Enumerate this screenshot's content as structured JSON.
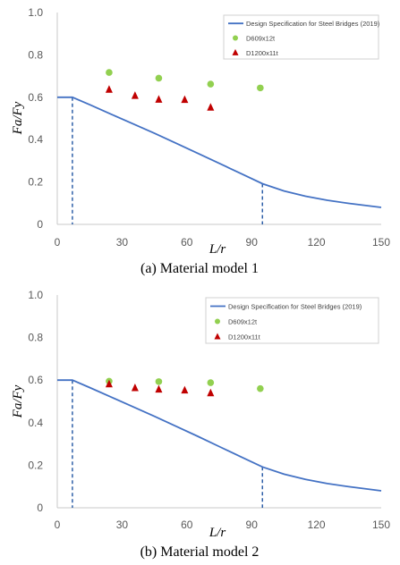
{
  "chart_data": [
    {
      "type": "line",
      "caption": "(a) Material model 1",
      "xlabel": "L/r",
      "ylabel": "Fa/Fy",
      "xlim": [
        0,
        150
      ],
      "ylim": [
        0,
        1.0
      ],
      "xticks": [
        "0",
        "30",
        "60",
        "90",
        "120",
        "150"
      ],
      "yticks": [
        "0",
        "0.2",
        "0.4",
        "0.6",
        "0.8",
        "1.0"
      ],
      "grid": false,
      "legend_position": "top-right",
      "legend": [
        "Design Specification for Steel Bridges (2019)",
        "D609x12t",
        "D1200x11t"
      ],
      "curve": {
        "name": "Design Specification for Steel Bridges (2019)",
        "color": "#4472C4",
        "x": [
          0,
          7,
          15,
          25,
          35,
          45,
          55,
          65,
          75,
          85,
          95,
          105,
          115,
          125,
          135,
          150
        ],
        "y": [
          0.6,
          0.6,
          0.565,
          0.52,
          0.475,
          0.43,
          0.383,
          0.336,
          0.288,
          0.24,
          0.192,
          0.158,
          0.133,
          0.114,
          0.099,
          0.08
        ]
      },
      "series": [
        {
          "name": "D609x12t",
          "marker": "circle",
          "color": "#92D050",
          "x": [
            24,
            47,
            71,
            94
          ],
          "y": [
            0.717,
            0.69,
            0.662,
            0.644
          ]
        },
        {
          "name": "D1200x11t",
          "marker": "triangle",
          "color": "#C00000",
          "x": [
            24,
            36,
            47,
            59,
            71
          ],
          "y": [
            0.637,
            0.608,
            0.59,
            0.589,
            0.553
          ]
        }
      ],
      "dashed_markers": {
        "color": "#2E5FA8",
        "x": [
          7,
          95
        ]
      }
    },
    {
      "type": "line",
      "caption": "(b) Material model 2",
      "xlabel": "L/r",
      "ylabel": "Fa/Fy",
      "xlim": [
        0,
        150
      ],
      "ylim": [
        0,
        1.0
      ],
      "xticks": [
        "0",
        "30",
        "60",
        "90",
        "120",
        "150"
      ],
      "yticks": [
        "0",
        "0.2",
        "0.4",
        "0.6",
        "0.8",
        "1.0"
      ],
      "grid": false,
      "legend_position": "top-right",
      "legend": [
        "Design Specification for Steel Bridges (2019)",
        "D609x12t",
        "D1200x11t"
      ],
      "curve": {
        "name": "Design Specification for Steel Bridges (2019)",
        "color": "#4472C4",
        "x": [
          0,
          7,
          15,
          25,
          35,
          45,
          55,
          65,
          75,
          85,
          95,
          105,
          115,
          125,
          135,
          150
        ],
        "y": [
          0.6,
          0.6,
          0.565,
          0.52,
          0.475,
          0.43,
          0.383,
          0.336,
          0.288,
          0.24,
          0.192,
          0.158,
          0.133,
          0.114,
          0.099,
          0.08
        ]
      },
      "series": [
        {
          "name": "D609x12t",
          "marker": "circle",
          "color": "#92D050",
          "x": [
            24,
            47,
            71,
            94
          ],
          "y": [
            0.595,
            0.593,
            0.588,
            0.56
          ]
        },
        {
          "name": "D1200x11t",
          "marker": "triangle",
          "color": "#C00000",
          "x": [
            24,
            36,
            47,
            59,
            71
          ],
          "y": [
            0.582,
            0.564,
            0.557,
            0.553,
            0.54
          ]
        }
      ],
      "dashed_markers": {
        "color": "#2E5FA8",
        "x": [
          7,
          95
        ]
      }
    }
  ]
}
